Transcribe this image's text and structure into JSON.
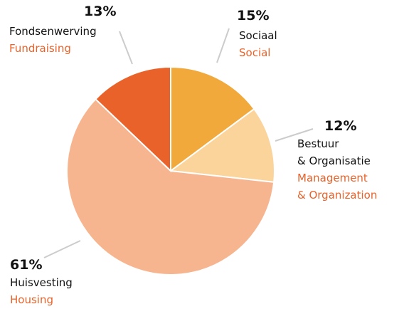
{
  "chart_data": {
    "type": "pie",
    "categories": [
      [
        "Sociaal"
      ],
      [
        "Bestuur",
        "& Organisatie"
      ],
      [
        "Huisvesting"
      ],
      [
        "Fondsenwerving"
      ]
    ],
    "translations": [
      [
        "Social"
      ],
      [
        "Management",
        "& Organization"
      ],
      [
        "Housing"
      ],
      [
        "Fundraising"
      ]
    ],
    "values": [
      15,
      12,
      61,
      13
    ],
    "value_labels": [
      "15%",
      "12%",
      "61%",
      "13%"
    ],
    "colors": [
      "#f2a93b",
      "#fbd49b",
      "#f6b58f",
      "#e8622a"
    ]
  }
}
